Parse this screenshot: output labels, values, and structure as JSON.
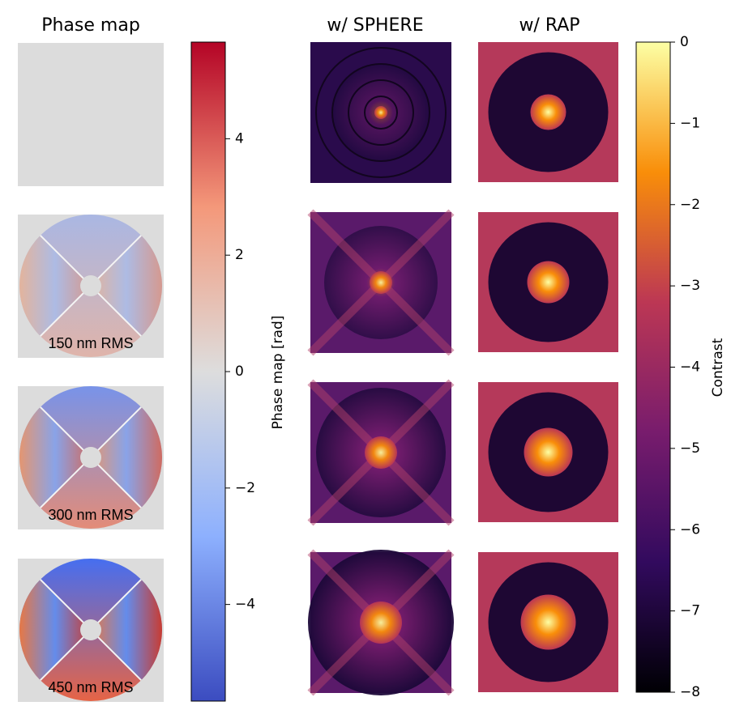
{
  "titles": [
    "Phase map",
    "w/ SPHERE",
    "w/ RAP"
  ],
  "rms_labels": [
    "150 nm RMS",
    "300 nm RMS",
    "450 nm RMS"
  ],
  "phase_colorbar": {
    "label": "Phase map [rad]",
    "lim": [
      -5.66,
      5.66
    ],
    "ticks": [
      {
        "value": -4,
        "label": "−4"
      },
      {
        "value": -2,
        "label": "−2"
      },
      0,
      2,
      4
    ]
  },
  "contrast_colorbar": {
    "label": "Contrast",
    "lim": [
      -8,
      0
    ],
    "ticks": [
      {
        "value": -8,
        "label": "−8"
      },
      {
        "value": -7,
        "label": "−7"
      },
      {
        "value": -6,
        "label": "−6"
      },
      {
        "value": -5,
        "label": "−5"
      },
      {
        "value": -4,
        "label": "−4"
      },
      {
        "value": -3,
        "label": "−3"
      },
      {
        "value": -2,
        "label": "−2"
      },
      {
        "value": -1,
        "label": "−1"
      },
      0
    ]
  }
}
